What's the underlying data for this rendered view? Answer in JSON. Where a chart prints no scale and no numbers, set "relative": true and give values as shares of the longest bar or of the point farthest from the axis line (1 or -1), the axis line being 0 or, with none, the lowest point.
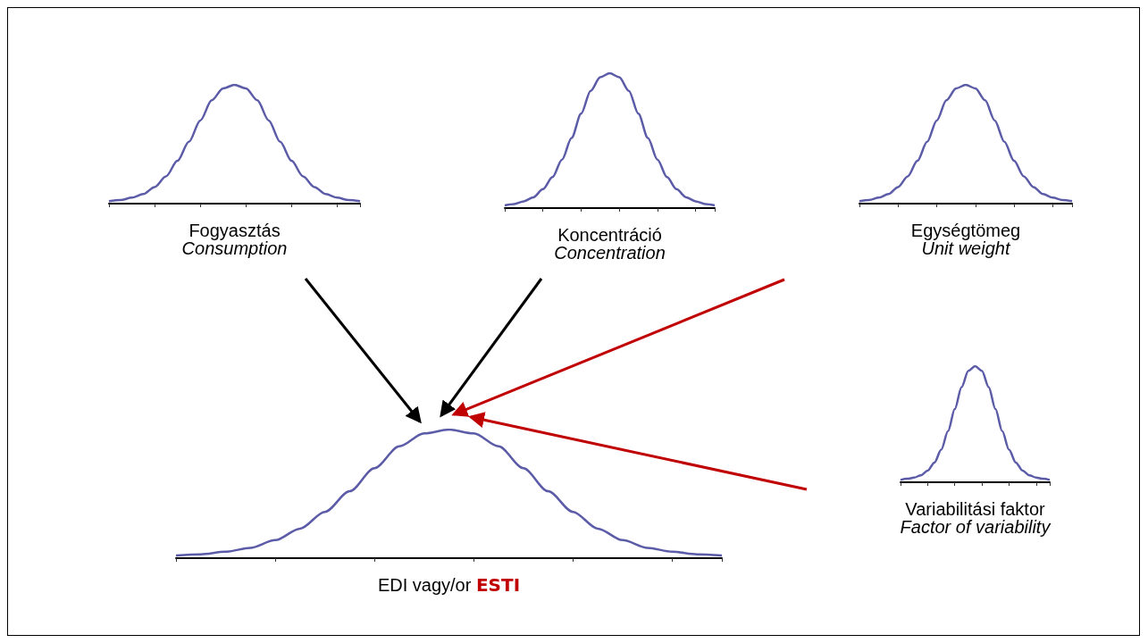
{
  "chart_data": [
    {
      "type": "line",
      "relative": true,
      "xlabel": "Fogyasztás",
      "annotations": [
        "Consumption"
      ],
      "categories": [
        null,
        null,
        null,
        null,
        null,
        null,
        null,
        null,
        null,
        null,
        null,
        null,
        null,
        null,
        null,
        null,
        null,
        null,
        null,
        null,
        null,
        null,
        null
      ],
      "color": "#5b5ba8",
      "marker": "none",
      "grid": false,
      "values": [
        0.02,
        0.03,
        0.05,
        0.08,
        0.14,
        0.23,
        0.36,
        0.52,
        0.7,
        0.87,
        0.97,
        1,
        0.97,
        0.87,
        0.7,
        0.52,
        0.36,
        0.23,
        0.14,
        0.08,
        0.05,
        0.03,
        0.02
      ]
    },
    {
      "type": "line",
      "relative": true,
      "xlabel": "Koncentráció",
      "annotations": [
        "Concentration"
      ],
      "categories": [
        null,
        null,
        null,
        null,
        null,
        null,
        null,
        null,
        null,
        null,
        null,
        null,
        null,
        null,
        null,
        null,
        null,
        null,
        null,
        null,
        null,
        null,
        null
      ],
      "color": "#5b5ba8",
      "marker": "none",
      "grid": false,
      "values": [
        0.02,
        0.03,
        0.05,
        0.08,
        0.14,
        0.23,
        0.36,
        0.52,
        0.7,
        0.87,
        0.97,
        1,
        0.97,
        0.87,
        0.7,
        0.52,
        0.36,
        0.23,
        0.14,
        0.08,
        0.05,
        0.03,
        0.02
      ]
    },
    {
      "type": "line",
      "relative": true,
      "xlabel": "Egységtömeg",
      "annotations": [
        "Unit weight"
      ],
      "categories": [
        null,
        null,
        null,
        null,
        null,
        null,
        null,
        null,
        null,
        null,
        null,
        null,
        null,
        null,
        null,
        null,
        null,
        null,
        null,
        null,
        null,
        null,
        null
      ],
      "color": "#5b5ba8",
      "marker": "none",
      "grid": false,
      "values": [
        0.02,
        0.03,
        0.05,
        0.08,
        0.14,
        0.23,
        0.36,
        0.52,
        0.7,
        0.87,
        0.97,
        1,
        0.97,
        0.87,
        0.7,
        0.52,
        0.36,
        0.23,
        0.14,
        0.08,
        0.05,
        0.03,
        0.02
      ]
    },
    {
      "type": "line",
      "relative": true,
      "xlabel": "Variabilitási faktor",
      "annotations": [
        "Factor of variability"
      ],
      "categories": [
        null,
        null,
        null,
        null,
        null,
        null,
        null,
        null,
        null,
        null,
        null,
        null,
        null,
        null,
        null,
        null,
        null,
        null,
        null,
        null,
        null,
        null,
        null
      ],
      "color": "#5b5ba8",
      "marker": "none",
      "grid": false,
      "values": [
        0.02,
        0.03,
        0.04,
        0.06,
        0.1,
        0.17,
        0.28,
        0.44,
        0.63,
        0.82,
        0.96,
        1,
        0.96,
        0.82,
        0.63,
        0.44,
        0.28,
        0.17,
        0.1,
        0.06,
        0.04,
        0.03,
        0.02
      ]
    },
    {
      "type": "line",
      "relative": true,
      "xlabel": "EDI vagy/or ESTI",
      "categories": [
        null,
        null,
        null,
        null,
        null,
        null,
        null,
        null,
        null,
        null,
        null,
        null,
        null,
        null,
        null,
        null,
        null,
        null,
        null,
        null,
        null,
        null,
        null
      ],
      "color": "#5b5ba8",
      "marker": "none",
      "grid": false,
      "values": [
        0.02,
        0.03,
        0.05,
        0.08,
        0.14,
        0.23,
        0.36,
        0.52,
        0.7,
        0.87,
        0.97,
        1,
        0.97,
        0.87,
        0.7,
        0.52,
        0.36,
        0.23,
        0.14,
        0.08,
        0.05,
        0.03,
        0.02
      ]
    }
  ]
}
